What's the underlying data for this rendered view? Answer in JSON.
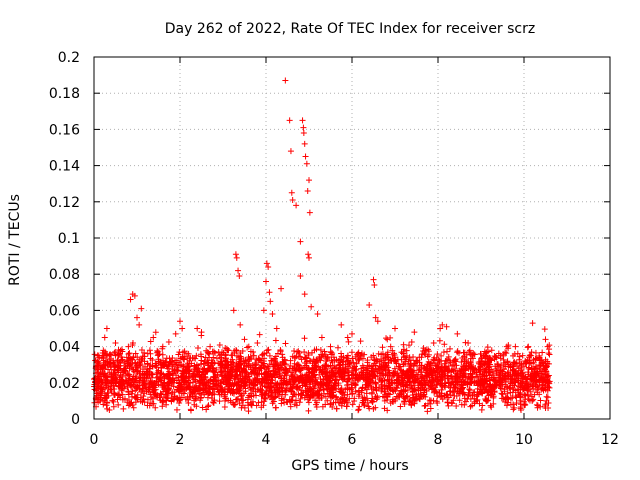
{
  "chart_data": {
    "type": "scatter",
    "title": "Day 262 of 2022, Rate Of TEC Index for receiver scrz",
    "xlabel": "GPS time / hours",
    "ylabel": "ROTI / TECUs",
    "xlim": [
      0,
      12
    ],
    "ylim": [
      0,
      0.2
    ],
    "xticks": [
      0,
      2,
      4,
      6,
      8,
      10,
      12
    ],
    "yticks": [
      0,
      0.02,
      0.04,
      0.06,
      0.08,
      0.1,
      0.12,
      0.14,
      0.16,
      0.18,
      0.2
    ],
    "grid": true,
    "marker": "+",
    "color": "#ff0000",
    "series": [
      {
        "name": "ROTI",
        "description": "Dense band of values 0.005-0.04 TECUs from 0 to ~10.6 h",
        "points": [
          [
            0.05,
            0.012
          ],
          [
            0.1,
            0.035
          ],
          [
            0.2,
            0.028
          ],
          [
            0.25,
            0.045
          ],
          [
            0.3,
            0.05
          ],
          [
            0.5,
            0.042
          ],
          [
            0.6,
            0.036
          ],
          [
            0.8,
            0.04
          ],
          [
            0.85,
            0.066
          ],
          [
            0.9,
            0.069
          ],
          [
            0.95,
            0.068
          ],
          [
            1.0,
            0.056
          ],
          [
            1.05,
            0.052
          ],
          [
            1.1,
            0.061
          ],
          [
            1.3,
            0.038
          ],
          [
            1.5,
            0.033
          ],
          [
            1.6,
            0.04
          ],
          [
            1.9,
            0.047
          ],
          [
            2.0,
            0.054
          ],
          [
            2.05,
            0.05
          ],
          [
            2.2,
            0.036
          ],
          [
            2.4,
            0.05
          ],
          [
            2.5,
            0.048
          ],
          [
            2.7,
            0.04
          ],
          [
            2.9,
            0.037
          ],
          [
            3.1,
            0.038
          ],
          [
            3.25,
            0.06
          ],
          [
            3.3,
            0.091
          ],
          [
            3.32,
            0.089
          ],
          [
            3.35,
            0.082
          ],
          [
            3.38,
            0.079
          ],
          [
            3.4,
            0.052
          ],
          [
            3.5,
            0.044
          ],
          [
            3.6,
            0.04
          ],
          [
            3.8,
            0.042
          ],
          [
            3.95,
            0.06
          ],
          [
            4.0,
            0.076
          ],
          [
            4.02,
            0.086
          ],
          [
            4.05,
            0.084
          ],
          [
            4.08,
            0.07
          ],
          [
            4.1,
            0.065
          ],
          [
            4.15,
            0.058
          ],
          [
            4.25,
            0.05
          ],
          [
            4.35,
            0.072
          ],
          [
            4.45,
            0.187
          ],
          [
            4.55,
            0.165
          ],
          [
            4.58,
            0.148
          ],
          [
            4.6,
            0.125
          ],
          [
            4.62,
            0.121
          ],
          [
            4.7,
            0.118
          ],
          [
            4.8,
            0.098
          ],
          [
            4.85,
            0.165
          ],
          [
            4.87,
            0.161
          ],
          [
            4.88,
            0.158
          ],
          [
            4.9,
            0.152
          ],
          [
            4.92,
            0.145
          ],
          [
            4.95,
            0.141
          ],
          [
            4.97,
            0.126
          ],
          [
            5.0,
            0.132
          ],
          [
            5.02,
            0.114
          ],
          [
            4.98,
            0.091
          ],
          [
            5.0,
            0.089
          ],
          [
            4.8,
            0.079
          ],
          [
            4.9,
            0.069
          ],
          [
            5.05,
            0.062
          ],
          [
            5.2,
            0.058
          ],
          [
            5.3,
            0.045
          ],
          [
            5.5,
            0.04
          ],
          [
            5.75,
            0.052
          ],
          [
            5.9,
            0.045
          ],
          [
            6.0,
            0.047
          ],
          [
            6.2,
            0.043
          ],
          [
            6.4,
            0.063
          ],
          [
            6.5,
            0.077
          ],
          [
            6.52,
            0.074
          ],
          [
            6.55,
            0.056
          ],
          [
            6.6,
            0.054
          ],
          [
            6.9,
            0.04
          ],
          [
            7.0,
            0.05
          ],
          [
            7.2,
            0.041
          ],
          [
            7.45,
            0.048
          ],
          [
            7.7,
            0.038
          ],
          [
            7.9,
            0.042
          ],
          [
            8.05,
            0.05
          ],
          [
            8.1,
            0.052
          ],
          [
            8.2,
            0.051
          ],
          [
            8.45,
            0.047
          ],
          [
            8.7,
            0.042
          ],
          [
            9.0,
            0.036
          ],
          [
            9.25,
            0.038
          ],
          [
            9.45,
            0.035
          ],
          [
            9.6,
            0.04
          ],
          [
            9.8,
            0.04
          ],
          [
            10.1,
            0.04
          ],
          [
            10.2,
            0.053
          ],
          [
            10.35,
            0.034
          ],
          [
            10.5,
            0.044
          ],
          [
            10.55,
            0.04
          ]
        ]
      }
    ]
  }
}
